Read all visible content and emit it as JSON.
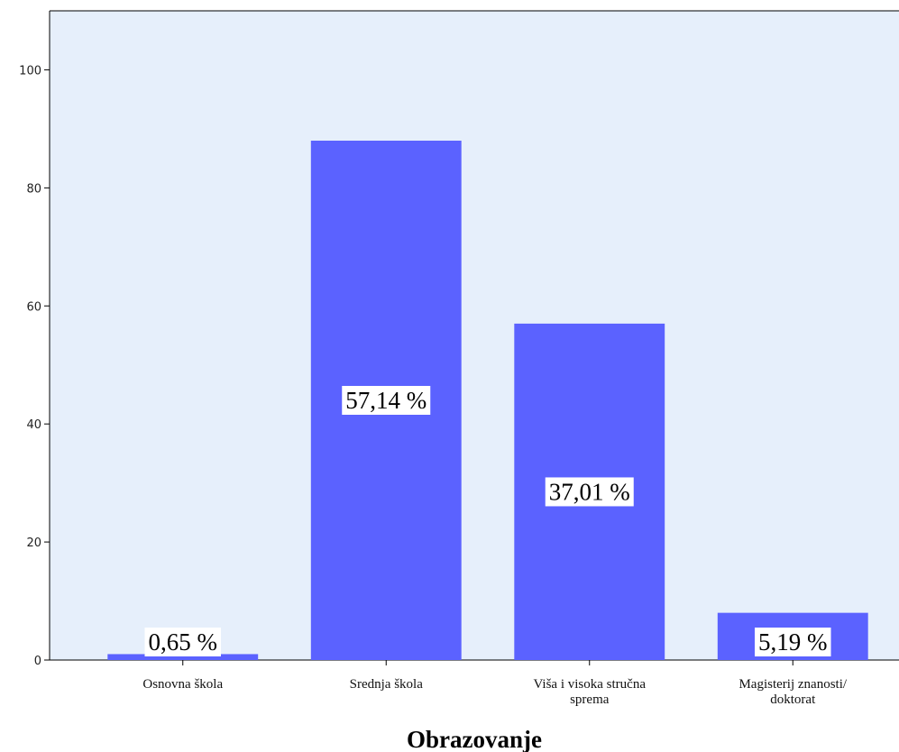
{
  "chart_data": {
    "type": "bar",
    "categories": [
      "Osnovna škola",
      "Srednja škola",
      "Viša i visoka stručna spremа",
      "Magisterij znanosti/ doktorat"
    ],
    "category_lines": [
      [
        "Osnovna škola"
      ],
      [
        "Srednja škola"
      ],
      [
        "Viša i visoka stručna",
        "sprema"
      ],
      [
        "Magisterij znanosti/",
        "doktorat"
      ]
    ],
    "values": [
      1,
      88,
      57,
      8
    ],
    "data_labels": [
      "0,65 %",
      "57,14 %",
      "37,01 %",
      "5,19 %"
    ],
    "title": "",
    "xlabel": "Obrazovanje",
    "ylabel": "",
    "ylim": [
      0,
      110
    ],
    "yticks": [
      0,
      20,
      40,
      60,
      80,
      100
    ],
    "grid": false,
    "colors": {
      "bar": "#5b62ff",
      "plot_background": "#e6effb",
      "axis": "#000000"
    }
  }
}
